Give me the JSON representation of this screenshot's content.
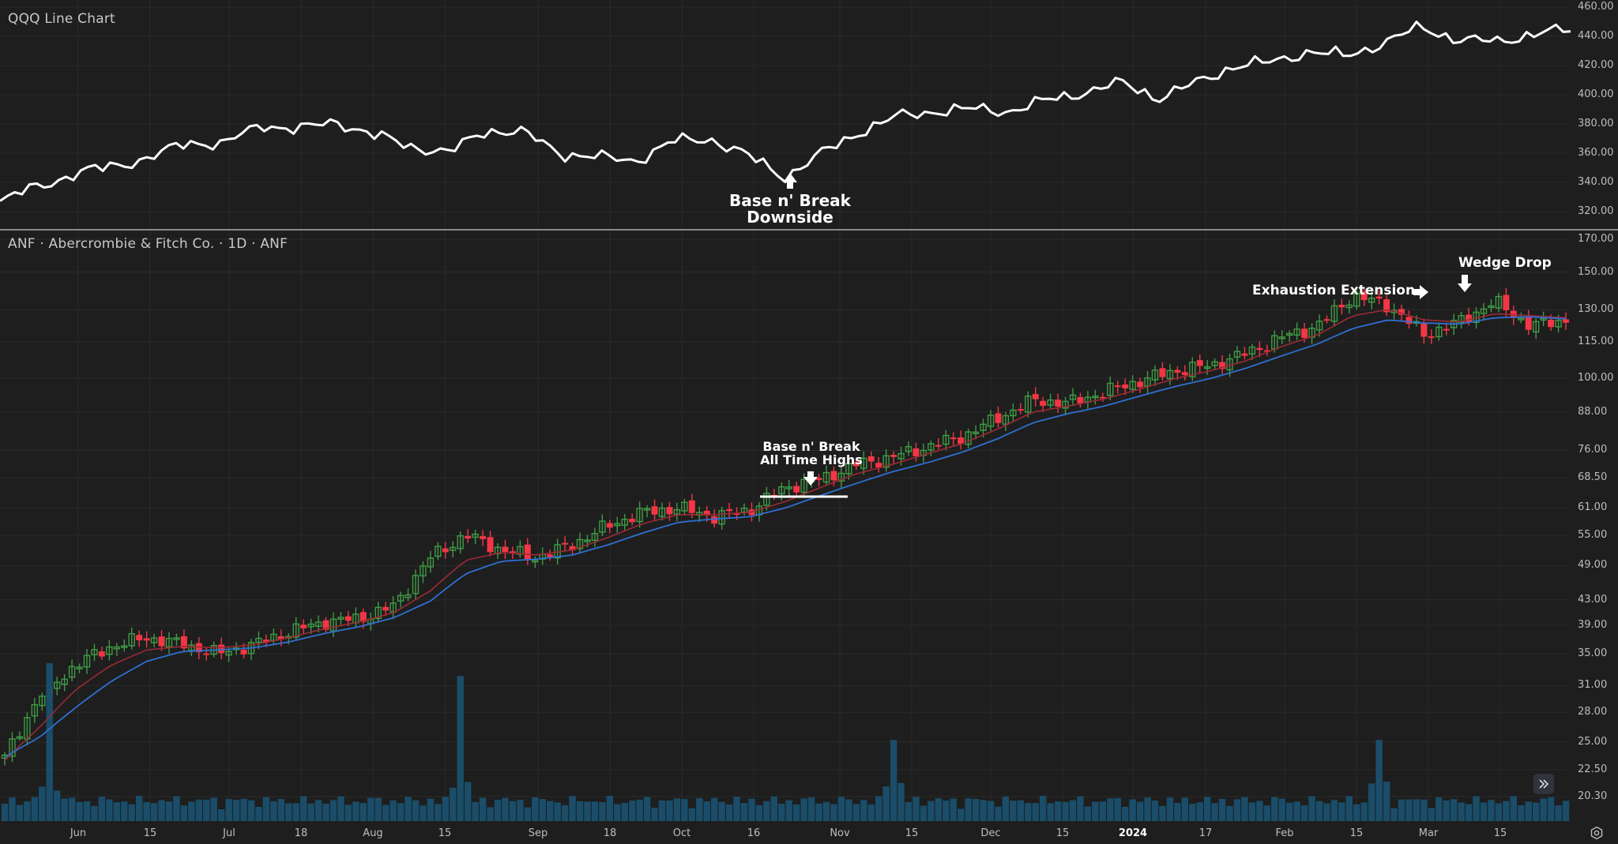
{
  "top_pane": {
    "title": "QQQ Line Chart",
    "y_ticks": [
      "460.00",
      "440.00",
      "420.00",
      "400.00",
      "380.00",
      "360.00",
      "340.00",
      "320.00"
    ],
    "annotation": {
      "line1": "Base n' Break",
      "line2": "Downside"
    }
  },
  "bottom_pane": {
    "title": "ANF · Abercrombie & Fitch Co. · 1D · ANF",
    "y_ticks": [
      "170.00",
      "150.00",
      "130.00",
      "115.00",
      "100.00",
      "88.00",
      "76.00",
      "68.50",
      "61.00",
      "55.00",
      "49.00",
      "43.00",
      "39.00",
      "35.00",
      "31.00",
      "28.00",
      "25.00",
      "22.50",
      "20.30"
    ],
    "annotations": {
      "ath": {
        "line1": "Base n' Break",
        "line2": "All Time Highs"
      },
      "exhaustion": "Exhaustion Extension",
      "wedge": "Wedge Drop"
    }
  },
  "x_axis": {
    "labels": [
      "Jun",
      "15",
      "Jul",
      "18",
      "Aug",
      "15",
      "Sep",
      "18",
      "Oct",
      "16",
      "Nov",
      "15",
      "Dec",
      "15",
      "2024",
      "17",
      "Feb",
      "15",
      "Mar",
      "15"
    ]
  },
  "controls": {
    "scroll_to_latest_icon": "double-chevron-right-icon",
    "settings_icon": "gear-hexagon-icon"
  },
  "colors": {
    "background": "#1e1e1e",
    "grid": "#2b2b2b",
    "qqq_line": "#ffffff",
    "up_candle": "#3f9b44",
    "down_candle": "#f23645",
    "ema_fast": "#9b2a35",
    "ema_slow": "#2f6fd0",
    "volume": "#1a506e",
    "separator": "#8a8a8a"
  },
  "chart_data": [
    {
      "type": "line",
      "title": "QQQ Line Chart",
      "xlabel": "",
      "ylabel": "",
      "ylim": [
        312,
        462
      ],
      "x": [
        "May 24",
        "Jun 1",
        "Jun 8",
        "Jun 15",
        "Jun 22",
        "Jul 1",
        "Jul 10",
        "Jul 18",
        "Jul 26",
        "Aug 1",
        "Aug 8",
        "Aug 15",
        "Aug 22",
        "Sep 1",
        "Sep 8",
        "Sep 15",
        "Sep 22",
        "Oct 1",
        "Oct 9",
        "Oct 16",
        "Oct 23",
        "Oct 27",
        "Nov 1",
        "Nov 8",
        "Nov 15",
        "Nov 22",
        "Dec 1",
        "Dec 8",
        "Dec 15",
        "Dec 22",
        "Jan 2",
        "Jan 10",
        "Jan 17",
        "Jan 24",
        "Feb 1",
        "Feb 8",
        "Feb 15",
        "Feb 22",
        "Mar 1",
        "Mar 8",
        "Mar 15",
        "Mar 22",
        "Mar 28"
      ],
      "values": [
        326,
        338,
        345,
        352,
        356,
        368,
        366,
        380,
        376,
        382,
        372,
        365,
        360,
        376,
        374,
        360,
        357,
        355,
        368,
        370,
        358,
        344,
        360,
        375,
        385,
        389,
        390,
        389,
        396,
        402,
        408,
        398,
        408,
        420,
        422,
        430,
        426,
        436,
        446,
        438,
        436,
        442,
        444
      ],
      "annotations": [
        "Base n' Break Downside (late Oct 2023)"
      ]
    },
    {
      "type": "candlestick",
      "title": "ANF · Abercrombie & Fitch Co. · 1D · ANF",
      "scale": "log",
      "ylim": [
        19.5,
        172
      ],
      "x": [
        "May 24",
        "May 31",
        "Jun 8",
        "Jun 15",
        "Jun 22",
        "Jul 1",
        "Jul 10",
        "Jul 18",
        "Jul 26",
        "Aug 1",
        "Aug 8",
        "Aug 15",
        "Aug 23",
        "Sep 1",
        "Sep 8",
        "Sep 15",
        "Sep 22",
        "Oct 1",
        "Oct 9",
        "Oct 16",
        "Oct 23",
        "Oct 30",
        "Nov 6",
        "Nov 13",
        "Nov 20",
        "Nov 27",
        "Dec 4",
        "Dec 11",
        "Dec 18",
        "Dec 26",
        "Jan 3",
        "Jan 10",
        "Jan 17",
        "Jan 24",
        "Feb 1",
        "Feb 8",
        "Feb 15",
        "Feb 22",
        "Mar 1",
        "Mar 6",
        "Mar 8",
        "Mar 15",
        "Mar 22",
        "Mar 26",
        "Mar 28"
      ],
      "close": [
        23.5,
        29.8,
        33.5,
        36.0,
        37.2,
        36.3,
        35.0,
        36.2,
        38.0,
        39.5,
        40.0,
        42.0,
        50.5,
        55.0,
        52.0,
        50.5,
        53.0,
        57.0,
        60.0,
        61.0,
        59.0,
        60.5,
        66.0,
        68.0,
        72.0,
        74.0,
        77.0,
        80.0,
        86.0,
        92.0,
        91.0,
        95.0,
        99.0,
        103.0,
        105.0,
        110.0,
        117.0,
        122.0,
        137.0,
        132.0,
        118.0,
        124.0,
        134.0,
        122.0,
        125.0
      ],
      "series": [
        {
          "name": "EMA fast (red)",
          "values": [
            23.3,
            26.5,
            30.5,
            33.5,
            35.5,
            36.0,
            35.8,
            36.2,
            37.2,
            38.5,
            39.5,
            41.0,
            44.5,
            50.0,
            51.5,
            51.0,
            52.0,
            54.5,
            57.5,
            59.5,
            59.5,
            60.0,
            62.5,
            66.0,
            69.5,
            72.0,
            75.0,
            78.0,
            82.5,
            88.0,
            90.0,
            92.5,
            96.0,
            100.0,
            103.0,
            107.0,
            113.0,
            118.0,
            127.0,
            130.0,
            125.0,
            124.0,
            128.0,
            127.0,
            126.0
          ]
        },
        {
          "name": "EMA slow (blue)",
          "values": [
            23.6,
            25.5,
            28.5,
            31.5,
            34.0,
            35.3,
            35.5,
            35.8,
            36.6,
            37.8,
            38.8,
            40.2,
            42.8,
            47.5,
            49.8,
            50.2,
            51.0,
            53.0,
            55.5,
            57.8,
            58.5,
            59.0,
            61.0,
            64.0,
            67.0,
            70.0,
            72.5,
            75.5,
            79.5,
            84.5,
            87.5,
            90.0,
            93.5,
            97.0,
            100.0,
            104.0,
            109.0,
            114.0,
            121.0,
            125.0,
            123.5,
            123.0,
            126.0,
            126.5,
            125.5
          ]
        }
      ],
      "volume_spikes": [
        {
          "date": "May 31 2023",
          "relative": 1.0
        },
        {
          "date": "Aug 23 2023",
          "relative": 0.91
        },
        {
          "date": "Nov 22 2023",
          "relative": 0.46
        },
        {
          "date": "Mar 6 2024",
          "relative": 0.46
        }
      ],
      "annotations": [
        "Base n' Break All Time Highs (late Oct – early Nov 2023, ~63)",
        "Exhaustion Extension (early Mar 2024, ~137)",
        "Wedge Drop (Mar 7 2024)"
      ]
    }
  ]
}
